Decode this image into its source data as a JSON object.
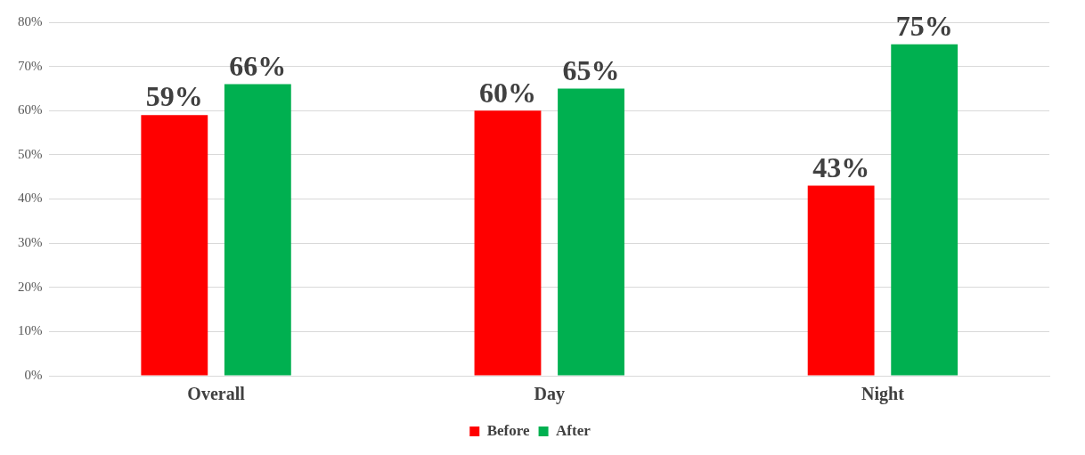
{
  "chart_data": {
    "type": "bar",
    "categories": [
      "Overall",
      "Day",
      "Night"
    ],
    "series": [
      {
        "name": "Before",
        "color": "#ff0000",
        "values": [
          59,
          60,
          43
        ],
        "value_labels": [
          "59%",
          "60%",
          "43%"
        ]
      },
      {
        "name": "After",
        "color": "#00b050",
        "values": [
          66,
          65,
          75
        ],
        "value_labels": [
          "66%",
          "65%",
          "75%"
        ]
      }
    ],
    "ylim": [
      0,
      80
    ],
    "yticks": [
      {
        "value": 0,
        "label": "0%"
      },
      {
        "value": 10,
        "label": "10%"
      },
      {
        "value": 20,
        "label": "20%"
      },
      {
        "value": 30,
        "label": "30%"
      },
      {
        "value": 40,
        "label": "40%"
      },
      {
        "value": 50,
        "label": "50%"
      },
      {
        "value": 60,
        "label": "60%"
      },
      {
        "value": 70,
        "label": "70%"
      },
      {
        "value": 80,
        "label": "80%"
      }
    ],
    "grid": "y",
    "legend": "bottom"
  }
}
